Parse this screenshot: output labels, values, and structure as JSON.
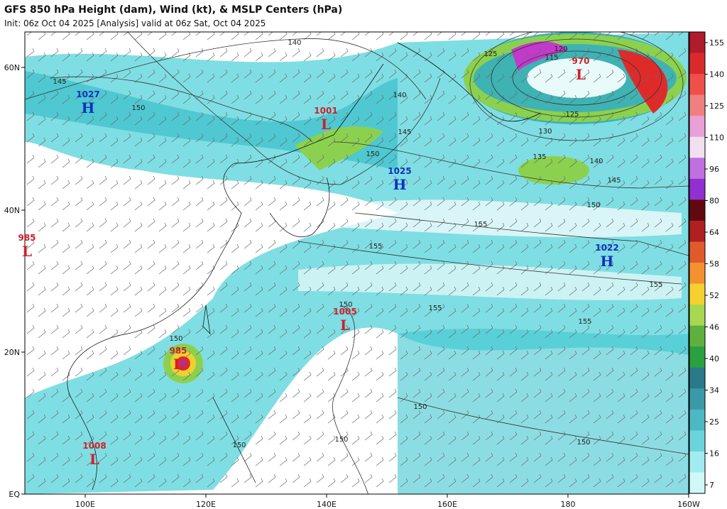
{
  "header": {
    "title": "GFS 850 hPa Height (dam), Wind (kt), & MSLP Centers (hPa)",
    "subtitle": "Init: 06z Oct 04 2025  [Analysis]   valid at 06z Sat, Oct 04 2025"
  },
  "axes": {
    "lon_labels": [
      "100E",
      "120E",
      "140E",
      "160E",
      "180",
      "160W"
    ],
    "lat_labels": [
      "60N",
      "40N",
      "20N",
      "EQ"
    ]
  },
  "colorbar": {
    "labels": [
      "155",
      "140",
      "125",
      "110",
      "96",
      "80",
      "64",
      "58",
      "52",
      "46",
      "40",
      "34",
      "25",
      "16",
      "7"
    ]
  },
  "centers": [
    {
      "letter": "H",
      "value": "1027"
    },
    {
      "letter": "L",
      "value": "1001"
    },
    {
      "letter": "H",
      "value": "1025"
    },
    {
      "letter": "L",
      "value": "970"
    },
    {
      "letter": "L",
      "value": "985"
    },
    {
      "letter": "H",
      "value": "1022"
    },
    {
      "letter": "L",
      "value": "1005"
    },
    {
      "letter": "L",
      "value": "985"
    },
    {
      "letter": "L",
      "value": "1008"
    }
  ],
  "contour_labels": [
    "140",
    "145",
    "150",
    "140",
    "145",
    "150",
    "125",
    "120",
    "115",
    "125",
    "130",
    "135",
    "140",
    "145",
    "150",
    "155",
    "155",
    "155",
    "155",
    "155",
    "150",
    "150",
    "150",
    "150",
    "150",
    "150"
  ]
}
